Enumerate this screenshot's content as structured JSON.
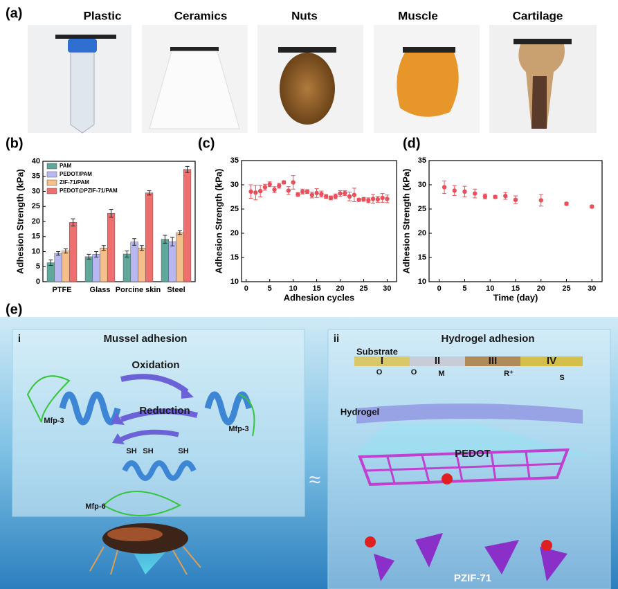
{
  "panel_labels": [
    "(a)",
    "(b)",
    "(c)",
    "(d)",
    "(e)"
  ],
  "photos": [
    "Plastic",
    "Ceramics",
    "Nuts",
    "Muscle",
    "Cartilage"
  ],
  "chart_data": [
    {
      "type": "bar",
      "ylabel": "Adhesion Strength (kPa)",
      "categories": [
        "PTFE",
        "Glass",
        "Porcine skin",
        "Steel"
      ],
      "series": [
        {
          "name": "PAM",
          "color": "#5fa89b",
          "values": [
            6.3,
            8.3,
            9.2,
            14.1
          ],
          "errors": [
            0.9,
            0.8,
            1.0,
            1.3
          ]
        },
        {
          "name": "PEDOT/PAM",
          "color": "#b9b7f2",
          "values": [
            9.4,
            9.1,
            13.2,
            13.3
          ],
          "errors": [
            0.6,
            0.9,
            1.1,
            1.4
          ]
        },
        {
          "name": "ZIF-71/PAM",
          "color": "#f4bf8a",
          "values": [
            10.2,
            11.2,
            11.2,
            16.3
          ],
          "errors": [
            0.7,
            0.8,
            0.8,
            0.6
          ]
        },
        {
          "name": "PEDOT@PZIF-71/PAM",
          "color": "#ef6f6f",
          "values": [
            19.7,
            22.7,
            29.5,
            37.3
          ],
          "errors": [
            1.2,
            1.3,
            0.7,
            1.0
          ]
        }
      ],
      "ylim": [
        0,
        40
      ],
      "yticks": [
        0,
        5,
        10,
        15,
        20,
        25,
        30,
        35,
        40
      ],
      "legend": "upper left"
    },
    {
      "type": "scatter",
      "xlabel": "Adhesion cycles",
      "ylabel": "Adhesion Strength (kPa)",
      "color": "#e8505b",
      "x": [
        1,
        2,
        3,
        4,
        5,
        6,
        7,
        8,
        9,
        10,
        11,
        12,
        13,
        14,
        15,
        16,
        17,
        18,
        19,
        20,
        21,
        22,
        23,
        24,
        25,
        26,
        27,
        28,
        29,
        30
      ],
      "values": [
        28.6,
        28.4,
        28.7,
        29.5,
        30.1,
        29.0,
        29.8,
        30.5,
        28.8,
        30.5,
        28.0,
        28.6,
        28.6,
        27.9,
        28.3,
        28.1,
        27.6,
        27.3,
        27.6,
        28.2,
        28.3,
        27.6,
        27.9,
        26.9,
        27.0,
        26.8,
        27.1,
        27.0,
        27.3,
        27.1
      ],
      "errors": [
        1.4,
        1.5,
        1.2,
        0.6,
        0.5,
        0.6,
        0.5,
        0.3,
        0.8,
        1.4,
        0.4,
        0.5,
        0.4,
        0.6,
        0.9,
        0.6,
        0.4,
        0.4,
        0.5,
        0.6,
        0.5,
        0.9,
        1.4,
        0.3,
        0.4,
        0.5,
        0.9,
        0.6,
        0.9,
        0.8
      ],
      "xlim": [
        -1,
        32
      ],
      "xticks": [
        0,
        5,
        10,
        15,
        20,
        25,
        30
      ],
      "ylim": [
        10,
        35
      ],
      "yticks": [
        10,
        15,
        20,
        25,
        30,
        35
      ]
    },
    {
      "type": "scatter",
      "xlabel": "Time (day)",
      "ylabel": "Adhesion Strength (kPa)",
      "color": "#e8505b",
      "x": [
        1,
        3,
        5,
        7,
        9,
        11,
        13,
        15,
        20,
        25,
        30
      ],
      "values": [
        29.5,
        28.8,
        28.6,
        28.2,
        27.6,
        27.5,
        27.7,
        26.9,
        26.8,
        26.1,
        25.5
      ],
      "errors": [
        1.3,
        1.0,
        1.1,
        0.9,
        0.5,
        0.3,
        0.7,
        0.8,
        1.2,
        0.3,
        0.3
      ],
      "xlim": [
        -2,
        32
      ],
      "xticks": [
        0,
        5,
        10,
        15,
        20,
        25,
        30
      ],
      "ylim": [
        10,
        35
      ],
      "yticks": [
        10,
        15,
        20,
        25,
        30,
        35
      ]
    }
  ],
  "diagram": {
    "left": {
      "tag": "i",
      "title": "Mussel adhesion",
      "oxidation": "Oxidation",
      "reduction": "Reduction",
      "mfp3_a": "Mfp-3",
      "mfp3_b": "Mfp-3",
      "sh": [
        "SH",
        "SH",
        "SH"
      ],
      "mfp6": "Mfp-6"
    },
    "approx": "≈",
    "right": {
      "tag": "ii",
      "title": "Hydrogel adhesion",
      "substrate": "Substrate",
      "sites": [
        "I",
        "II",
        "III",
        "IV"
      ],
      "o": [
        "O",
        "O"
      ],
      "m": "M",
      "r": "R⁺",
      "s": "S",
      "hydrogel": "Hydrogel",
      "pedot": "PEDOT",
      "pzif": "PZIF-71"
    }
  }
}
